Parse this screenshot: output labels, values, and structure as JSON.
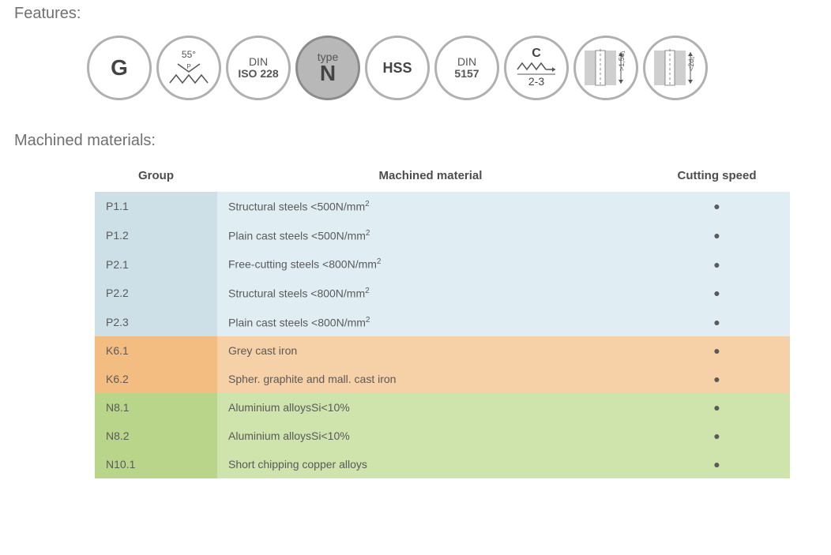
{
  "titles": {
    "features": "Features:",
    "materials": "Machined materials:"
  },
  "badges": [
    {
      "id": "g",
      "kind": "text_big",
      "text": "G",
      "filled": false
    },
    {
      "id": "angle55",
      "kind": "svg_angle",
      "angle": "55°",
      "filled": false
    },
    {
      "id": "din228",
      "kind": "two_line",
      "line1": "DIN",
      "line2": "ISO 228",
      "filled": false
    },
    {
      "id": "typeN",
      "kind": "two_line",
      "line1": "type",
      "line2": "N",
      "filled": true
    },
    {
      "id": "hss",
      "kind": "text_med",
      "text": "HSS",
      "filled": false
    },
    {
      "id": "din5157",
      "kind": "two_line",
      "line1": "DIN",
      "line2": "5157",
      "filled": false
    },
    {
      "id": "c23",
      "kind": "svg_chamfer",
      "top": "C",
      "bot": "2-3",
      "filled": false
    },
    {
      "id": "depth15d",
      "kind": "svg_hole",
      "label": ">1,5d₁",
      "filled": false
    },
    {
      "id": "depth2d",
      "kind": "svg_hole",
      "label": "<2d₁",
      "filled": false
    }
  ],
  "columns": {
    "group": "Group",
    "material": "Machined material",
    "speed": "Cutting speed"
  },
  "colors": {
    "P_group": "#cddfe7",
    "P_row": "#e0eef4",
    "K_group": "#f3bd82",
    "K_row": "#f6d0a6",
    "N_group": "#b9d58a",
    "N_row": "#cfe3ad",
    "dot": "#5a5a5a",
    "header_text": "#4d4d4d",
    "body_text": "#5a5a5a",
    "title_text": "#707070",
    "badge_border": "#b0b0b0",
    "badge_fill": "#b8b8b8"
  },
  "rows": [
    {
      "grp": "P",
      "code": "P1.1",
      "material_pre": "Structural steels <500N/mm",
      "sup": "2",
      "speed": "●"
    },
    {
      "grp": "P",
      "code": "P1.2",
      "material_pre": "Plain cast steels <500N/mm",
      "sup": "2",
      "speed": "●"
    },
    {
      "grp": "P",
      "code": "P2.1",
      "material_pre": "Free-cutting steels <800N/mm",
      "sup": "2",
      "speed": "●"
    },
    {
      "grp": "P",
      "code": "P2.2",
      "material_pre": "Structural steels <800N/mm",
      "sup": "2",
      "speed": "●"
    },
    {
      "grp": "P",
      "code": "P2.3",
      "material_pre": "Plain cast steels <800N/mm",
      "sup": "2",
      "speed": "●"
    },
    {
      "grp": "K",
      "code": "K6.1",
      "material_pre": "Grey cast iron",
      "sup": "",
      "speed": "●"
    },
    {
      "grp": "K",
      "code": "K6.2",
      "material_pre": "Spher. graphite and mall. cast iron",
      "sup": "",
      "speed": "●"
    },
    {
      "grp": "N",
      "code": "N8.1",
      "material_pre": "Aluminium alloysSi<10%",
      "sup": "",
      "speed": "●"
    },
    {
      "grp": "N",
      "code": "N8.2",
      "material_pre": "Aluminium alloysSi<10%",
      "sup": "",
      "speed": "●"
    },
    {
      "grp": "N",
      "code": "N10.1",
      "material_pre": "Short chipping copper alloys",
      "sup": "",
      "speed": "●"
    }
  ]
}
